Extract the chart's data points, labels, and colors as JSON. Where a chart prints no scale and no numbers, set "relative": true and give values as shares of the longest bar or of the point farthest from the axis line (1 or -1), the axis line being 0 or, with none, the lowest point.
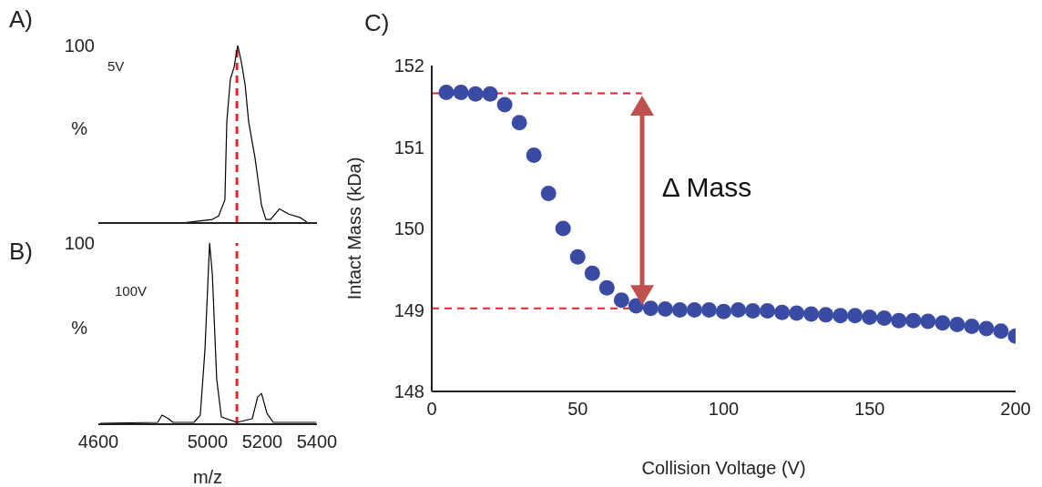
{
  "chart_data": [
    {
      "type": "line",
      "title": "A)",
      "ylabel": "%",
      "relative": true,
      "xlim": [
        4600,
        5400
      ],
      "tick_labels": false,
      "marker": "none",
      "annotations": [
        "100",
        "5V"
      ],
      "ref_lines": [
        {
          "axis": "x",
          "value": 5107,
          "color": "#e8232a",
          "line_style": "dashed"
        }
      ],
      "series": [
        {
          "color": "#000000",
          "x": [
            4900,
            4960,
            5017,
            5040,
            5063,
            5070,
            5083,
            5097,
            5110,
            5123,
            5137,
            5150,
            5173,
            5197,
            5213,
            5230,
            5263,
            5297,
            5340,
            5363
          ],
          "values": [
            0,
            0.01,
            0.02,
            0.04,
            0.13,
            0.57,
            0.81,
            0.88,
            1.0,
            0.91,
            0.78,
            0.57,
            0.37,
            0.1,
            0.02,
            0.02,
            0.08,
            0.05,
            0.03,
            0.005
          ]
        }
      ]
    },
    {
      "type": "line",
      "title": "B)",
      "ylabel": "%",
      "xlabel": "m/z",
      "relative": true,
      "xlim": [
        4600,
        5400
      ],
      "xticks": [
        4600,
        5000,
        5200,
        5400
      ],
      "tick_labels": "x",
      "marker": "none",
      "annotations": [
        "100",
        "100V"
      ],
      "ref_lines": [
        {
          "axis": "x",
          "value": 5107,
          "color": "#e8232a",
          "line_style": "dashed"
        }
      ],
      "series": [
        {
          "color": "#000000",
          "x": [
            4607,
            4817,
            4833,
            4857,
            4873,
            4950,
            4973,
            4990,
            5007,
            5017,
            5033,
            5050,
            5107,
            5163,
            5183,
            5197,
            5217,
            5240,
            5397
          ],
          "values": [
            0.005,
            0.01,
            0.05,
            0.03,
            0.01,
            0.01,
            0.05,
            0.41,
            1.0,
            0.83,
            0.25,
            0.04,
            0.01,
            0.03,
            0.15,
            0.17,
            0.06,
            0.01,
            0.01
          ]
        }
      ]
    },
    {
      "type": "scatter",
      "title": "C)",
      "xlabel": "Collision Voltage (V)",
      "ylabel": "Intact Mass (kDa)",
      "xlim": [
        0,
        200
      ],
      "xticks": [
        0,
        50,
        100,
        150,
        200
      ],
      "ylim": [
        148,
        152
      ],
      "yticks": [
        148,
        149,
        150,
        151,
        152
      ],
      "marker": "circle",
      "annotations": [
        "Δ Mass"
      ],
      "ref_lines": [
        {
          "axis": "y",
          "value": 151.66,
          "color": "#e8232a",
          "line_style": "dashed"
        },
        {
          "axis": "y",
          "value": 149.02,
          "color": "#e8232a",
          "line_style": "dashed"
        }
      ],
      "series": [
        {
          "color": "#3a4ba3",
          "x": [
            5,
            10,
            15,
            20,
            25,
            30,
            35,
            40,
            45,
            50,
            55,
            60,
            65,
            70,
            75,
            80,
            85,
            90,
            95,
            100,
            105,
            110,
            115,
            120,
            125,
            130,
            135,
            140,
            145,
            150,
            155,
            160,
            165,
            170,
            175,
            180,
            185,
            190,
            195,
            200
          ],
          "values": [
            151.67,
            151.67,
            151.65,
            151.65,
            151.52,
            151.3,
            150.9,
            150.43,
            150.0,
            149.65,
            149.45,
            149.27,
            149.12,
            149.05,
            149.02,
            149.01,
            149.0,
            149.0,
            149.0,
            148.98,
            149.0,
            148.99,
            148.99,
            148.97,
            148.96,
            148.95,
            148.94,
            148.93,
            148.93,
            148.91,
            148.9,
            148.87,
            148.87,
            148.86,
            148.84,
            148.82,
            148.8,
            148.77,
            148.74,
            148.68
          ]
        }
      ]
    }
  ]
}
